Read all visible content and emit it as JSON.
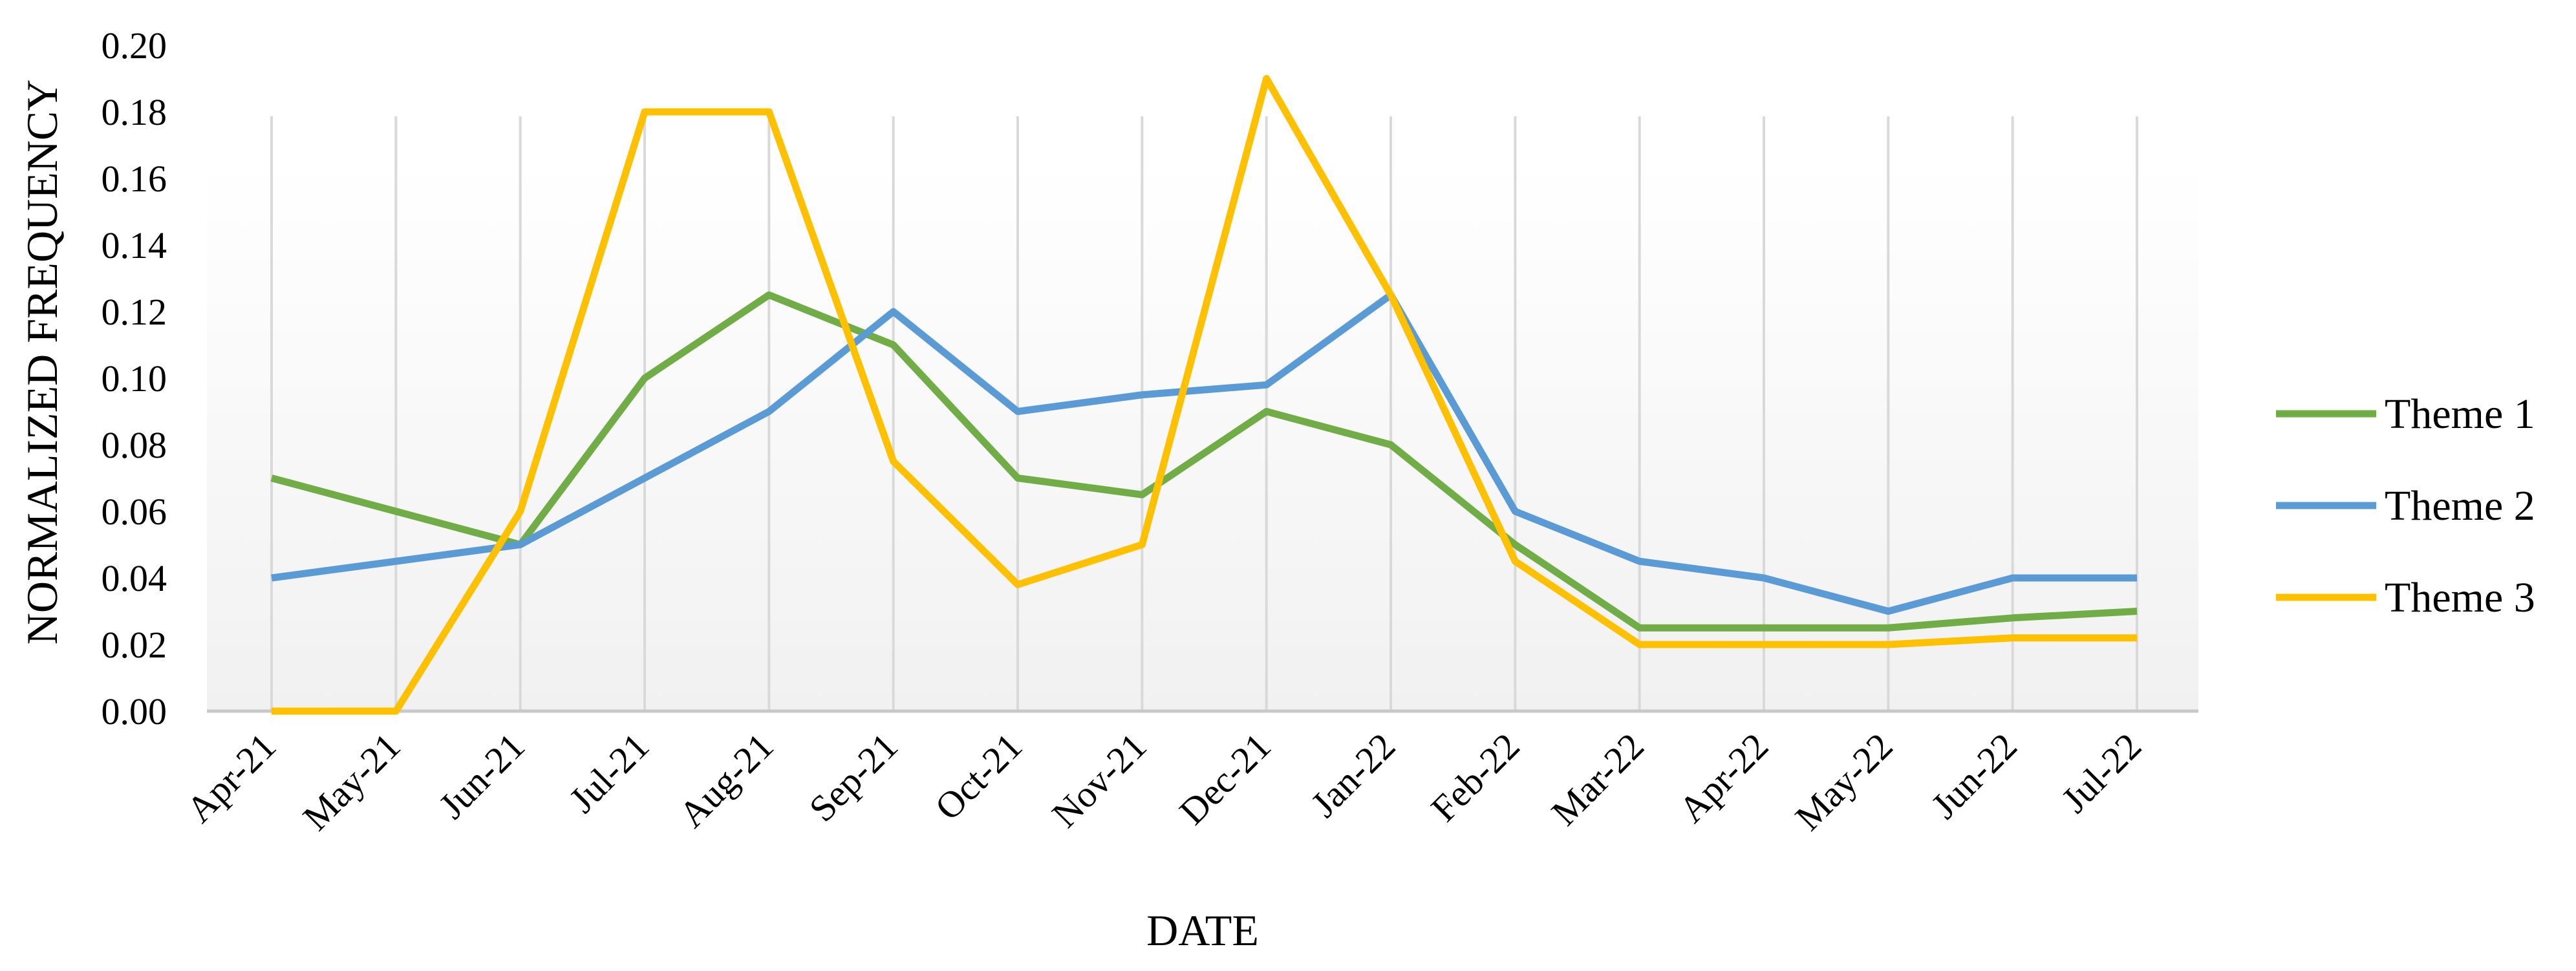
{
  "chart_data": {
    "type": "line",
    "title": "",
    "xlabel": "DATE",
    "ylabel": "NORMALIZED FREQUENCY",
    "ylim": [
      0,
      0.2
    ],
    "yticks": [
      "0.00",
      "0.02",
      "0.04",
      "0.06",
      "0.08",
      "0.10",
      "0.12",
      "0.14",
      "0.16",
      "0.18",
      "0.20"
    ],
    "categories": [
      "Apr-21",
      "May-21",
      "Jun-21",
      "Jul-21",
      "Aug-21",
      "Sep-21",
      "Oct-21",
      "Nov-21",
      "Dec-21",
      "Jan-22",
      "Feb-22",
      "Mar-22",
      "Apr-22",
      "May-22",
      "Jun-22",
      "Jul-22"
    ],
    "grid": "vertical",
    "legend_position": "right",
    "series": [
      {
        "name": "Theme 1",
        "color": "#70AD47",
        "values": [
          0.07,
          0.06,
          0.05,
          0.1,
          0.125,
          0.11,
          0.07,
          0.065,
          0.09,
          0.08,
          0.05,
          0.025,
          0.025,
          0.025,
          0.028,
          0.03
        ]
      },
      {
        "name": "Theme 2",
        "color": "#5B9BD5",
        "values": [
          0.04,
          0.045,
          0.05,
          0.07,
          0.09,
          0.12,
          0.09,
          0.095,
          0.098,
          0.125,
          0.06,
          0.045,
          0.04,
          0.03,
          0.04,
          0.04
        ]
      },
      {
        "name": "Theme 3",
        "color": "#FFC000",
        "values": [
          0.0,
          0.0,
          0.06,
          0.18,
          0.18,
          0.075,
          0.038,
          0.05,
          0.19,
          0.125,
          0.045,
          0.02,
          0.02,
          0.02,
          0.022,
          0.022
        ]
      }
    ]
  }
}
